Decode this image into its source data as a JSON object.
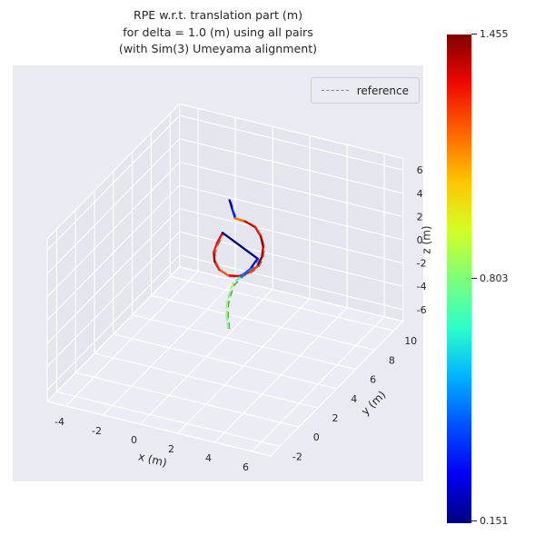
{
  "title": {
    "line1": "RPE w.r.t. translation part (m)",
    "line2": "for delta = 1.0 (m) using all pairs",
    "line3": "(with Sim(3) Umeyama alignment)"
  },
  "legend": {
    "reference_label": "reference"
  },
  "colorbar": {
    "max_label": "1.455",
    "mid_label": "0.803",
    "min_label": "0.151",
    "gradient_stops": [
      "#000080",
      "#0000f3",
      "#0050ff",
      "#00b4ff",
      "#2cffca",
      "#7dff79",
      "#d4ff23",
      "#ffc400",
      "#ff6400",
      "#f00800",
      "#800000"
    ]
  },
  "theme": {
    "panel_bg": "#eaeaf2",
    "wall_color": "#e5e5ee",
    "floor_color": "#ececf4",
    "grid_color": "#ffffff",
    "text_color": "#262626",
    "reference_color": "#7f7f7f"
  },
  "chart_data": {
    "type": "line",
    "projection": "3d",
    "title": "RPE w.r.t. translation part (m) for delta = 1.0 (m) using all pairs (with Sim(3) Umeyama alignment)",
    "legend_entries": [
      "reference"
    ],
    "legend_position": "upper right",
    "grid": true,
    "axes": {
      "x": {
        "label": "x (m)",
        "ticks": [
          -4,
          -2,
          0,
          2,
          4,
          6
        ],
        "range": [
          -5,
          7
        ]
      },
      "y": {
        "label": "y (m)",
        "ticks": [
          -2,
          0,
          2,
          4,
          6,
          8,
          10
        ],
        "range": [
          -3,
          11
        ]
      },
      "z": {
        "label": "z (m)",
        "ticks": [
          -6,
          -4,
          -2,
          0,
          2,
          4,
          6
        ],
        "range": [
          -7,
          7
        ]
      }
    },
    "color_mapping": {
      "name": "jet",
      "vmin": 0.151,
      "vmax": 1.455,
      "colorbar_ticks": [
        0.151,
        0.803,
        1.455
      ],
      "unit": "m"
    },
    "series": [
      {
        "name": "trajectory_rpe_colormapped",
        "description": "estimated trajectory, line color = RPE translation error (m)",
        "points_xyzv": [
          [
            0.2,
            6.05,
            4.85,
            0.25
          ],
          [
            0.3,
            6.15,
            4.0,
            0.22
          ],
          [
            0.4,
            6.25,
            3.2,
            0.35
          ],
          [
            0.8,
            6.5,
            2.9,
            1.15
          ],
          [
            1.25,
            6.7,
            2.4,
            1.35
          ],
          [
            1.5,
            6.8,
            1.6,
            1.28
          ],
          [
            1.6,
            6.85,
            0.7,
            1.42
          ],
          [
            1.55,
            6.8,
            -0.15,
            1.36
          ],
          [
            1.35,
            6.7,
            -0.95,
            1.45
          ],
          [
            0.95,
            6.55,
            -1.5,
            1.22
          ],
          [
            0.55,
            6.35,
            -1.8,
            1.3
          ],
          [
            0.1,
            6.1,
            -1.7,
            1.34
          ],
          [
            -0.3,
            5.95,
            -1.25,
            1.18
          ],
          [
            -0.5,
            5.85,
            -0.55,
            1.27
          ],
          [
            -0.55,
            5.85,
            0.25,
            1.4
          ],
          [
            -0.4,
            5.9,
            1.05,
            1.25
          ],
          [
            -0.15,
            6.0,
            1.95,
            1.3
          ],
          [
            1.35,
            6.75,
            -0.3,
            0.155
          ],
          [
            1.05,
            6.6,
            -1.15,
            0.3
          ],
          [
            0.6,
            6.3,
            -1.85,
            0.45
          ],
          [
            0.35,
            6.1,
            -2.35,
            0.75
          ],
          [
            0.28,
            5.9,
            -3.0,
            0.85
          ],
          [
            0.24,
            5.7,
            -3.7,
            0.8
          ],
          [
            0.3,
            5.55,
            -4.6,
            0.83
          ],
          [
            0.42,
            5.5,
            -5.8,
            0.8
          ]
        ],
        "dashed_from_index": 20
      },
      {
        "name": "reference",
        "style": "dashed",
        "color": "#7f7f7f",
        "description": "aligned reference trajectory, dashed, mostly overlapped by estimate"
      }
    ]
  }
}
